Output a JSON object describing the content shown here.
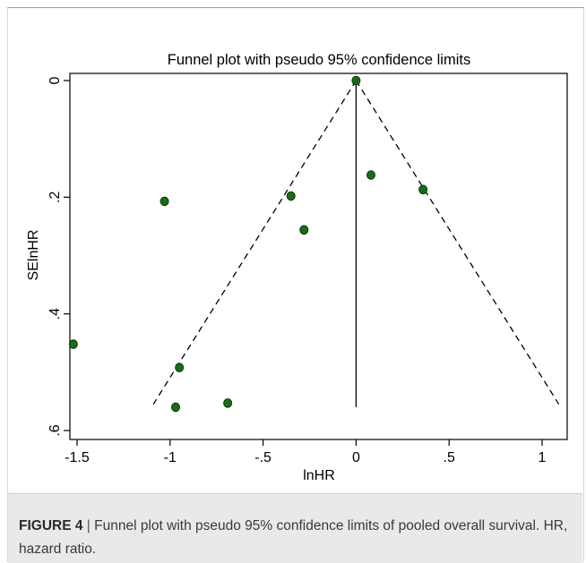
{
  "chart_data": {
    "type": "scatter",
    "title": "Funnel plot with pseudo 95% confidence limits",
    "xlabel": "lnHR",
    "ylabel": "SElnHR",
    "xlim": [
      -1.55,
      1.1
    ],
    "ylim": [
      0,
      0.605
    ],
    "y_inverted": true,
    "x_ticks": [
      -1.5,
      -1,
      -0.5,
      0,
      0.5,
      1
    ],
    "x_tick_labels": [
      "-1.5",
      "-1",
      "-.5",
      "0",
      ".5",
      "1"
    ],
    "y_ticks": [
      0,
      0.2,
      0.4,
      0.6
    ],
    "y_tick_labels": [
      "0",
      ".2",
      ".4",
      ".6"
    ],
    "grid": false,
    "point_color": "#1a6b1a",
    "points": [
      {
        "x": 0.0,
        "y": 0.0
      },
      {
        "x": 0.08,
        "y": 0.162
      },
      {
        "x": 0.36,
        "y": 0.187
      },
      {
        "x": -0.35,
        "y": 0.198
      },
      {
        "x": -1.03,
        "y": 0.207
      },
      {
        "x": -0.28,
        "y": 0.256
      },
      {
        "x": -1.52,
        "y": 0.452
      },
      {
        "x": -0.95,
        "y": 0.492
      },
      {
        "x": -0.69,
        "y": 0.553
      },
      {
        "x": -0.97,
        "y": 0.56
      }
    ],
    "pooled_estimate": {
      "x": 0.0,
      "y_from": 0.0,
      "y_to": 0.56
    },
    "confidence_limits": {
      "apex": {
        "x": 0.0,
        "y": 0.0
      },
      "left_end": {
        "x": -1.09,
        "y": 0.555
      },
      "right_end": {
        "x": 1.09,
        "y": 0.555
      },
      "style": "dashed"
    }
  },
  "caption": {
    "label": "FIGURE 4",
    "separator": "|",
    "text": "Funnel plot with pseudo 95% confidence limits of pooled overall survival. HR, hazard ratio."
  }
}
